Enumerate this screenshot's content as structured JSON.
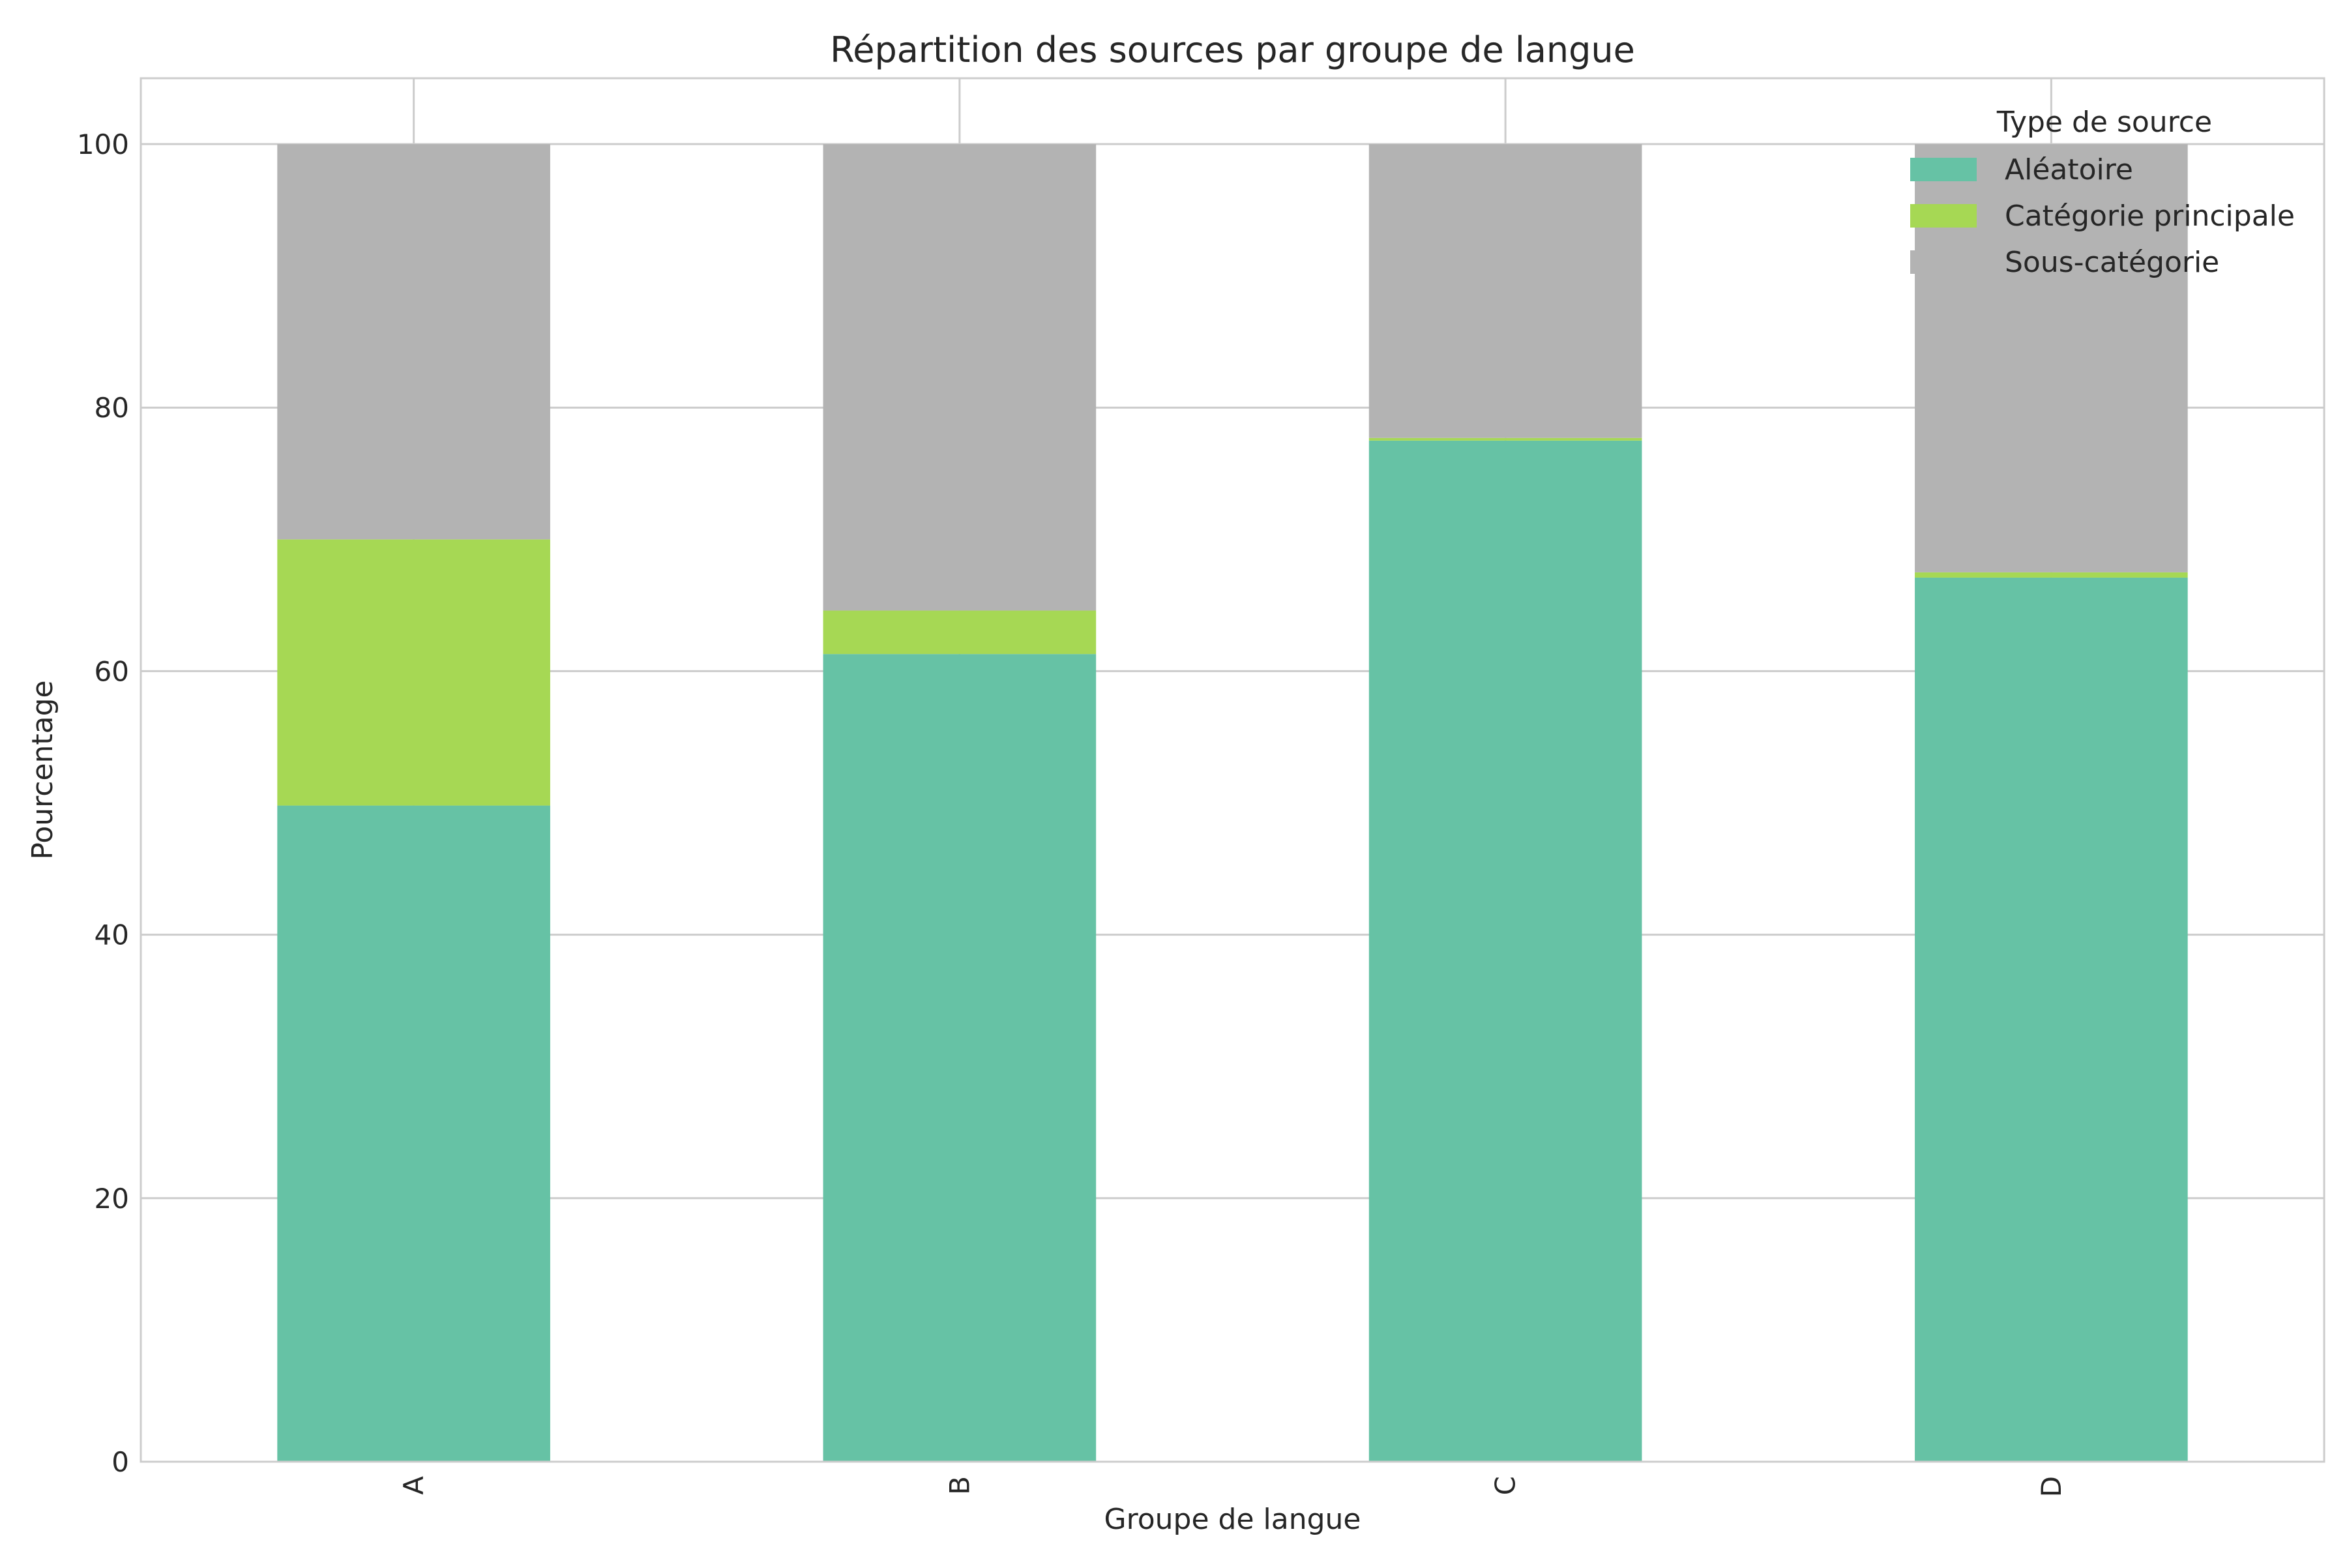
{
  "chart_data": {
    "type": "bar",
    "stacked": true,
    "title": "Répartition des sources par groupe de langue",
    "xlabel": "Groupe de langue",
    "ylabel": "Pourcentage",
    "categories": [
      "A",
      "B",
      "C",
      "D"
    ],
    "ylim": [
      0,
      105
    ],
    "yticks": [
      0,
      20,
      40,
      60,
      80,
      100
    ],
    "grid": true,
    "legend": {
      "title": "Type de source",
      "placement": "top-right"
    },
    "series": [
      {
        "name": "Aléatoire",
        "color": "#66c2a5",
        "values": [
          49.8,
          61.3,
          77.5,
          67.1
        ]
      },
      {
        "name": "Catégorie principale",
        "color": "#a6d854",
        "values": [
          20.2,
          3.3,
          0.2,
          0.4
        ]
      },
      {
        "name": "Sous-catégorie",
        "color": "#b3b3b3",
        "values": [
          30.0,
          35.4,
          22.3,
          32.5
        ]
      }
    ]
  }
}
